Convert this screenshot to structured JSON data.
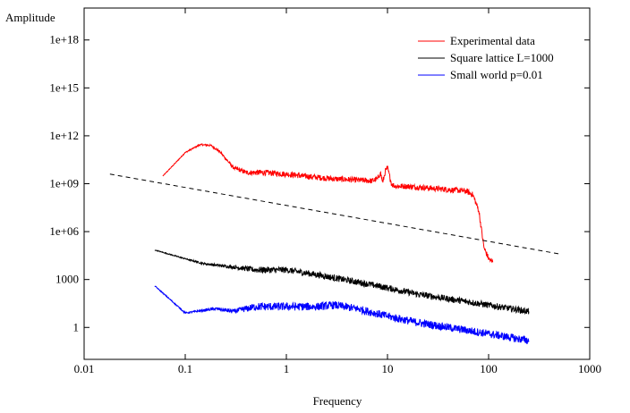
{
  "chart_data": {
    "type": "line",
    "xlabel": "Frequency",
    "ylabel": "Amplitude",
    "x_scale": "log",
    "y_scale": "log",
    "xlim": [
      0.01,
      1000
    ],
    "ylim": [
      0.01,
      1e+20
    ],
    "grid": false,
    "legend_position": "top-right",
    "x_ticks": [
      {
        "value": 0.01,
        "label": "0.01"
      },
      {
        "value": 0.1,
        "label": "0.1"
      },
      {
        "value": 1,
        "label": "1"
      },
      {
        "value": 10,
        "label": "10"
      },
      {
        "value": 100,
        "label": "100"
      },
      {
        "value": 1000,
        "label": "1000"
      }
    ],
    "y_ticks": [
      {
        "value": 1,
        "label": "1"
      },
      {
        "value": 1000,
        "label": "1000"
      },
      {
        "value": 1000000.0,
        "label": "1e+06"
      },
      {
        "value": 1000000000.0,
        "label": "1e+09"
      },
      {
        "value": 1000000000000.0,
        "label": "1e+12"
      },
      {
        "value": 1000000000000000.0,
        "label": "1e+15"
      },
      {
        "value": 1e+18,
        "label": "1e+18"
      }
    ],
    "series": [
      {
        "name": "Experimental data",
        "color": "#ff0000",
        "noise": 0.18,
        "x": [
          0.06,
          0.08,
          0.1,
          0.14,
          0.18,
          0.22,
          0.3,
          0.4,
          0.6,
          1,
          1.5,
          2,
          3,
          5,
          7,
          8,
          8.5,
          9,
          9.5,
          10,
          11,
          12,
          15,
          20,
          30,
          45,
          60,
          70,
          80,
          90,
          100,
          110
        ],
        "y": [
          3000000000.0,
          20000000000.0,
          90000000000.0,
          280000000000.0,
          250000000000.0,
          100000000000.0,
          10000000000.0,
          5000000000.0,
          5000000000.0,
          4000000000.0,
          3000000000.0,
          2500000000.0,
          2000000000.0,
          1700000000.0,
          1500000000.0,
          2000000000.0,
          5000000000.0,
          1200000000.0,
          6000000000.0,
          10000000000.0,
          900000000.0,
          700000000.0,
          700000000.0,
          600000000.0,
          500000000.0,
          400000000.0,
          350000000.0,
          200000000.0,
          20000000.0,
          100000.0,
          20000.0,
          12000.0
        ]
      },
      {
        "name": "Square lattice L=1000",
        "color": "#000000",
        "noise": 0.2,
        "x": [
          0.05,
          0.1,
          0.15,
          0.2,
          0.3,
          0.5,
          1,
          2,
          5,
          10,
          20,
          50,
          100,
          250
        ],
        "y": [
          70000,
          20000,
          10000,
          8000,
          6000,
          4000,
          4000,
          2000,
          700,
          300,
          120,
          50,
          25,
          10
        ]
      },
      {
        "name": "Small world p=0.01",
        "color": "#0000ff",
        "noise": 0.25,
        "x": [
          0.05,
          0.1,
          0.2,
          0.3,
          0.5,
          1,
          2,
          3,
          5,
          10,
          20,
          50,
          100,
          250
        ],
        "y": [
          400,
          8,
          15,
          10,
          20,
          20,
          20,
          25,
          15,
          5,
          2,
          0.8,
          0.4,
          0.15
        ]
      }
    ],
    "reference_line": {
      "style": "dashed",
      "color": "#000000",
      "x": [
        0.018,
        500
      ],
      "y": [
        4000000000.0,
        40000.0
      ]
    }
  }
}
